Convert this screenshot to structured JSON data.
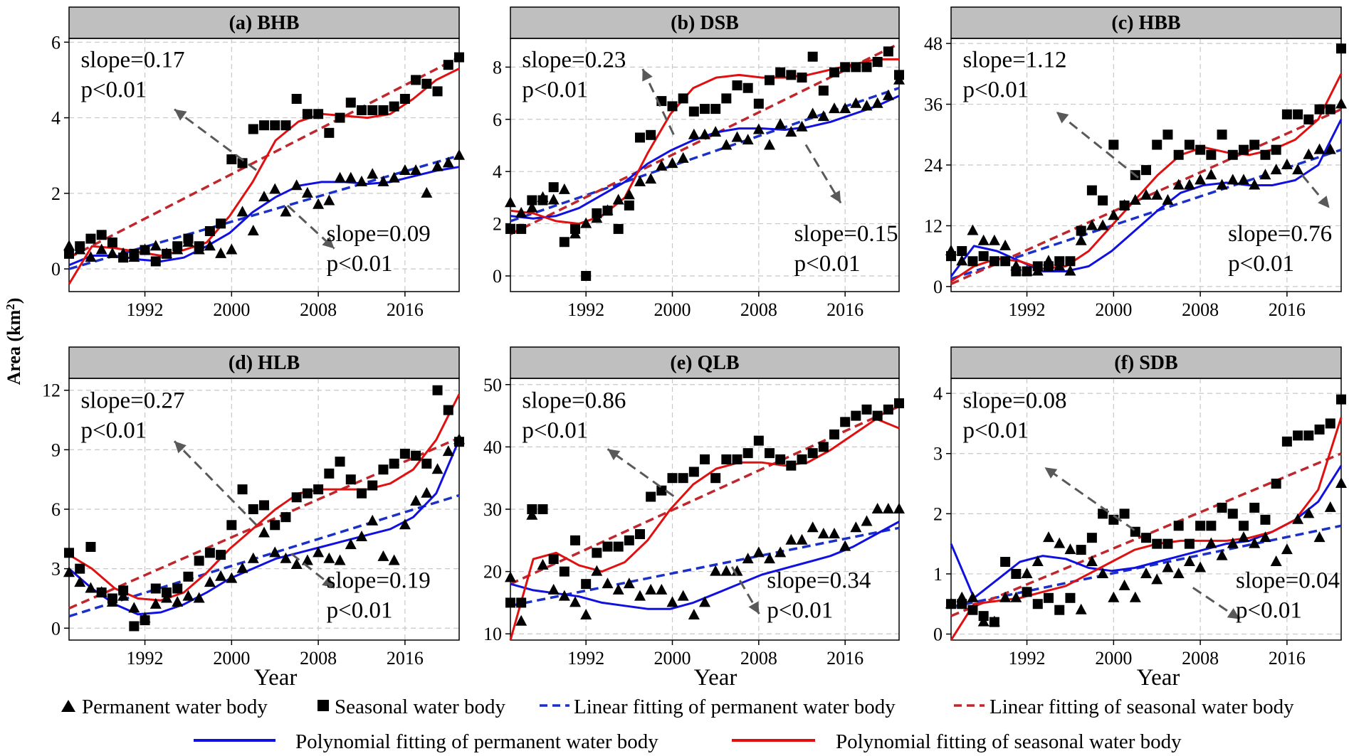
{
  "figure": {
    "y_axis_label": "Area (km",
    "y_axis_label_sup": "2",
    "y_axis_label_close": ")",
    "x_axis_label": "Year"
  },
  "legend": {
    "permanent_points": "Permanent water body",
    "seasonal_points": "Seasonal water body",
    "linear_permanent": "Linear fitting of permanent water body",
    "linear_seasonal": "Linear fitting of seasonal water body",
    "poly_permanent": "Polynomial fitting of permanent water body",
    "poly_seasonal": "Polynomial fitting of seasonal water body"
  },
  "colors": {
    "permanent_poly": "#1010e0",
    "permanent_linear": "#1a30c8",
    "seasonal_poly": "#e01010",
    "seasonal_linear": "#c0272d",
    "header_fill": "#bfbfbf",
    "grid": "#c8c8c8",
    "arrow": "#595959"
  },
  "chart_data": [
    {
      "type": "scatter",
      "label": "(a)",
      "name": "BHB",
      "xlim": [
        1985,
        2021
      ],
      "ylim": [
        -0.6,
        6.1
      ],
      "yticks": [
        0,
        2,
        4,
        6
      ],
      "xticks": [
        1992,
        2000,
        2008,
        2016
      ],
      "seasonal": {
        "slope_text": "slope=0.17",
        "p_text": "p<0.01",
        "values": [
          0.4,
          0.6,
          0.8,
          0.9,
          0.7,
          0.3,
          0.4,
          0.5,
          0.2,
          0.4,
          0.6,
          0.8,
          0.6,
          1.0,
          1.2,
          2.9,
          2.8,
          3.7,
          3.8,
          3.8,
          3.8,
          4.5,
          4.1,
          4.1,
          3.6,
          4.0,
          4.4,
          4.2,
          4.2,
          4.2,
          4.3,
          4.5,
          5.0,
          4.9,
          4.7,
          5.4,
          5.6
        ],
        "line": [
          0.3,
          5.6
        ],
        "poly": [
          -0.4,
          0.6,
          0.55,
          0.45,
          0.35,
          0.5,
          0.7,
          1.4,
          2.3,
          3.4,
          3.9,
          4.1,
          4.05,
          4.0,
          4.1,
          4.5,
          5.0,
          5.3
        ]
      },
      "permanent": {
        "slope_text": "slope=0.09",
        "p_text": "p<0.01",
        "values": [
          0.6,
          0.5,
          0.3,
          0.5,
          0.4,
          0.4,
          0.3,
          0.5,
          0.6,
          0.4,
          0.5,
          0.7,
          0.5,
          0.6,
          0.4,
          0.5,
          1.5,
          1.0,
          1.9,
          2.1,
          1.5,
          2.2,
          2.0,
          1.7,
          1.8,
          2.4,
          2.4,
          2.3,
          2.5,
          2.3,
          2.4,
          2.6,
          2.6,
          2.0,
          2.7,
          2.8,
          3.0
        ],
        "line": [
          0.0,
          3.0
        ],
        "poly": [
          0.1,
          0.35,
          0.35,
          0.25,
          0.2,
          0.3,
          0.6,
          0.95,
          1.5,
          1.9,
          2.2,
          2.3,
          2.3,
          2.25,
          2.3,
          2.45,
          2.6,
          2.7
        ]
      },
      "annotations": {
        "seasonal_text": [
          0.03,
          0.92
        ],
        "seasonal_arrow": [
          [
            0.48,
            0.48
          ],
          [
            0.27,
            0.72
          ]
        ],
        "permanent_text": [
          0.66,
          0.2
        ],
        "permanent_arrow": [
          [
            0.56,
            0.34
          ],
          [
            0.68,
            0.17
          ]
        ]
      }
    },
    {
      "type": "scatter",
      "label": "(b)",
      "name": "DSB",
      "xlim": [
        1985,
        2021
      ],
      "ylim": [
        -0.6,
        9.1
      ],
      "yticks": [
        0,
        2,
        4,
        6,
        8
      ],
      "xticks": [
        1992,
        2000,
        2008,
        2016
      ],
      "seasonal": {
        "slope_text": "slope=0.23",
        "p_text": "p<0.01",
        "values": [
          1.8,
          1.8,
          2.9,
          2.9,
          3.4,
          1.3,
          1.8,
          0.0,
          2.4,
          2.5,
          1.8,
          2.7,
          5.3,
          5.4,
          6.7,
          6.5,
          6.8,
          6.3,
          6.4,
          6.4,
          6.8,
          7.3,
          7.2,
          6.6,
          7.5,
          7.8,
          7.7,
          7.6,
          8.4,
          7.1,
          7.8,
          8.0,
          8.0,
          8.0,
          8.2,
          8.6,
          7.7
        ],
        "line": [
          1.6,
          8.9
        ],
        "poly": [
          2.5,
          2.4,
          2.1,
          2.0,
          2.3,
          3.0,
          4.7,
          6.2,
          7.2,
          7.6,
          7.7,
          7.6,
          7.6,
          7.7,
          7.9,
          8.1,
          8.3,
          8.3
        ]
      },
      "permanent": {
        "slope_text": "slope=0.15",
        "p_text": "p<0.01",
        "values": [
          2.8,
          2.4,
          2.6,
          3.0,
          2.9,
          3.3,
          1.6,
          2.0,
          2.2,
          2.5,
          2.9,
          3.1,
          3.6,
          3.7,
          4.2,
          4.3,
          4.5,
          5.4,
          5.4,
          5.5,
          5.0,
          5.3,
          5.2,
          5.6,
          5.0,
          5.8,
          5.5,
          5.7,
          6.2,
          6.1,
          6.4,
          6.4,
          6.6,
          6.5,
          6.6,
          6.9,
          7.5
        ],
        "line": [
          2.1,
          7.2
        ],
        "poly": [
          2.3,
          2.2,
          2.3,
          2.6,
          3.1,
          3.6,
          4.3,
          4.8,
          5.2,
          5.5,
          5.65,
          5.65,
          5.6,
          5.7,
          5.9,
          6.2,
          6.5,
          6.9
        ]
      },
      "annotations": {
        "seasonal_text": [
          0.03,
          0.92
        ],
        "seasonal_arrow": [
          [
            0.42,
            0.62
          ],
          [
            0.34,
            0.88
          ]
        ],
        "permanent_text": [
          0.73,
          0.2
        ],
        "permanent_arrow": [
          [
            0.76,
            0.58
          ],
          [
            0.85,
            0.35
          ]
        ]
      }
    },
    {
      "type": "scatter",
      "label": "(c)",
      "name": "HBB",
      "xlim": [
        1985,
        2021
      ],
      "ylim": [
        -1,
        49
      ],
      "yticks": [
        0,
        12,
        24,
        36,
        48
      ],
      "xticks": [
        1992,
        2000,
        2008,
        2016
      ],
      "seasonal": {
        "slope_text": "slope=1.12",
        "p_text": "p<0.01",
        "values": [
          6,
          7,
          5,
          6,
          5,
          5,
          3,
          3,
          4,
          4,
          5,
          5,
          11,
          19,
          17,
          28,
          16,
          22,
          23,
          28,
          30,
          26,
          28,
          27,
          26,
          30,
          26,
          27,
          28,
          26,
          27,
          34,
          34,
          33,
          35,
          35,
          47
        ],
        "line": [
          0.5,
          35
        ],
        "poly": [
          1,
          4,
          5.5,
          5,
          3.5,
          4,
          7,
          12,
          17,
          22,
          26,
          27.5,
          26.5,
          26,
          27,
          29,
          33,
          42
        ]
      },
      "permanent": {
        "slope_text": "slope=0.76",
        "p_text": "p<0.01",
        "values": [
          7,
          5,
          11,
          9,
          9,
          8,
          4,
          3,
          3,
          5,
          4,
          3,
          9,
          12,
          12,
          14,
          16,
          17,
          18,
          18,
          17,
          20,
          20,
          21,
          22,
          20,
          21,
          21,
          20,
          22,
          23,
          24,
          23,
          26,
          27,
          27,
          36
        ],
        "line": [
          1.5,
          27
        ],
        "poly": [
          2,
          8,
          7,
          5,
          3,
          3,
          4,
          7,
          11,
          15,
          18.5,
          20,
          20.5,
          20,
          20,
          21,
          24,
          33
        ]
      },
      "annotations": {
        "seasonal_text": [
          0.03,
          0.92
        ],
        "seasonal_arrow": [
          [
            0.48,
            0.45
          ],
          [
            0.27,
            0.71
          ]
        ],
        "permanent_text": [
          0.71,
          0.2
        ],
        "permanent_arrow": [
          [
            0.9,
            0.46
          ],
          [
            0.97,
            0.33
          ]
        ]
      }
    },
    {
      "type": "scatter",
      "label": "(d)",
      "name": "HLB",
      "xlim": [
        1985,
        2021
      ],
      "ylim": [
        -0.6,
        12.6
      ],
      "yticks": [
        0,
        3,
        6,
        9,
        12
      ],
      "xticks": [
        1992,
        2000,
        2008,
        2016
      ],
      "seasonal": {
        "slope_text": "slope=0.27",
        "p_text": "p<0.01",
        "values": [
          3.8,
          3.0,
          4.1,
          1.8,
          1.5,
          1.9,
          0.1,
          0.4,
          2.0,
          1.8,
          2.0,
          2.6,
          3.4,
          3.8,
          3.7,
          5.2,
          7.0,
          6.0,
          6.2,
          5.2,
          5.6,
          6.6,
          6.8,
          7.0,
          7.8,
          8.4,
          7.5,
          6.8,
          7.2,
          8.0,
          8.3,
          8.8,
          8.7,
          8.3,
          12.0,
          11.0,
          9.4
        ],
        "line": [
          1.0,
          9.6
        ],
        "poly": [
          3.7,
          3.0,
          2.0,
          1.5,
          1.4,
          1.8,
          2.8,
          4.0,
          5.0,
          6.0,
          6.8,
          7.0,
          7.0,
          7.0,
          7.3,
          8.0,
          9.5,
          11.8
        ]
      },
      "permanent": {
        "slope_text": "slope=0.19",
        "p_text": "p<0.01",
        "values": [
          2.8,
          2.3,
          2.0,
          1.8,
          1.3,
          1.6,
          1.0,
          0.5,
          1.2,
          1.5,
          1.3,
          1.6,
          1.5,
          2.3,
          2.6,
          2.5,
          3.0,
          3.5,
          4.8,
          3.8,
          3.5,
          3.2,
          3.4,
          3.8,
          3.5,
          3.4,
          4.2,
          4.6,
          5.4,
          3.6,
          3.4,
          5.2,
          6.4,
          6.8,
          8.0,
          8.9,
          9.5
        ],
        "line": [
          0.6,
          6.7
        ],
        "poly": [
          3.0,
          2.0,
          1.2,
          0.7,
          0.8,
          1.2,
          1.8,
          2.5,
          3.0,
          3.5,
          3.8,
          4.1,
          4.4,
          4.7,
          5.0,
          5.6,
          6.8,
          9.5
        ]
      },
      "annotations": {
        "seasonal_text": [
          0.03,
          0.92
        ],
        "seasonal_arrow": [
          [
            0.48,
            0.44
          ],
          [
            0.27,
            0.76
          ]
        ],
        "permanent_text": [
          0.66,
          0.2
        ],
        "permanent_arrow": [
          [
            0.57,
            0.33
          ],
          [
            0.68,
            0.2
          ]
        ]
      }
    },
    {
      "type": "scatter",
      "label": "(e)",
      "name": "QLB",
      "xlim": [
        1985,
        2021
      ],
      "ylim": [
        9,
        51
      ],
      "yticks": [
        10,
        20,
        30,
        40,
        50
      ],
      "xticks": [
        1992,
        2000,
        2008,
        2016
      ],
      "seasonal": {
        "slope_text": "slope=0.86",
        "p_text": "p<0.01",
        "values": [
          15,
          15,
          30,
          30,
          22,
          20,
          25,
          18,
          23,
          24,
          24,
          25,
          26,
          32,
          33,
          35,
          35,
          36,
          38,
          35,
          38,
          38,
          39,
          41,
          39,
          38,
          37,
          38,
          39,
          40,
          42,
          44,
          45,
          46,
          45,
          46,
          47
        ],
        "line": [
          18,
          46.5
        ],
        "poly": [
          9,
          22,
          23,
          21,
          20,
          21.5,
          25,
          30,
          34,
          36.5,
          37.5,
          37.5,
          37,
          37.5,
          39.5,
          42,
          44.5,
          43
        ]
      },
      "permanent": {
        "slope_text": "slope=0.34",
        "p_text": "p<0.01",
        "values": [
          19,
          12,
          29,
          21,
          17,
          16,
          15,
          13,
          20,
          18,
          17,
          18,
          16,
          17,
          17,
          15,
          16,
          13,
          15,
          20,
          20,
          20,
          22,
          23,
          22,
          23,
          25,
          25,
          27,
          26,
          26,
          24,
          27,
          28,
          30,
          30,
          30
        ],
        "line": [
          14.5,
          27
        ],
        "poly": [
          18,
          17,
          16.5,
          16,
          15,
          14.5,
          14,
          14,
          15,
          16.5,
          18,
          19.5,
          20.5,
          21.5,
          22.5,
          24,
          26,
          28
        ]
      },
      "annotations": {
        "seasonal_text": [
          0.03,
          0.92
        ],
        "seasonal_arrow": [
          [
            0.42,
            0.55
          ],
          [
            0.25,
            0.73
          ]
        ],
        "permanent_text": [
          0.66,
          0.2
        ],
        "permanent_arrow": [
          [
            0.57,
            0.28
          ],
          [
            0.64,
            0.1
          ]
        ]
      }
    },
    {
      "type": "scatter",
      "label": "(f)",
      "name": "SDB",
      "xlim": [
        1985,
        2021
      ],
      "ylim": [
        -0.1,
        4.25
      ],
      "yticks": [
        0,
        1,
        2,
        3,
        4
      ],
      "xticks": [
        1992,
        2000,
        2008,
        2016
      ],
      "seasonal": {
        "slope_text": "slope=0.08",
        "p_text": "p<0.01",
        "values": [
          0.5,
          0.5,
          0.4,
          0.3,
          0.2,
          1.2,
          1.0,
          0.7,
          0.5,
          0.6,
          0.4,
          0.6,
          1.4,
          1.6,
          2.0,
          1.9,
          2.0,
          1.7,
          1.6,
          1.5,
          1.5,
          1.8,
          1.5,
          1.8,
          1.8,
          2.1,
          2.0,
          1.8,
          2.1,
          1.9,
          2.5,
          3.2,
          3.3,
          3.3,
          3.4,
          3.5,
          3.9
        ],
        "line": [
          0.3,
          3.0
        ],
        "poly": [
          -0.1,
          0.5,
          0.55,
          0.6,
          0.7,
          0.8,
          1.0,
          1.2,
          1.4,
          1.5,
          1.55,
          1.55,
          1.55,
          1.6,
          1.7,
          1.9,
          2.4,
          3.6
        ]
      },
      "permanent": {
        "slope_text": "slope=0.04",
        "p_text": "p<0.01",
        "values": [
          0.5,
          0.6,
          0.6,
          0.2,
          0.2,
          0.6,
          0.6,
          1.0,
          1.2,
          1.6,
          1.5,
          1.4,
          0.4,
          1.2,
          1.0,
          0.6,
          0.8,
          0.6,
          1.0,
          0.9,
          1.1,
          1.0,
          1.2,
          1.1,
          1.5,
          1.3,
          1.5,
          1.6,
          1.5,
          1.6,
          1.2,
          1.4,
          1.9,
          2.0,
          1.6,
          2.1,
          2.5
        ],
        "line": [
          0.45,
          1.8
        ],
        "poly": [
          1.5,
          0.6,
          0.9,
          1.2,
          1.3,
          1.25,
          1.1,
          1.05,
          1.1,
          1.2,
          1.3,
          1.4,
          1.5,
          1.55,
          1.7,
          1.9,
          2.2,
          2.8
        ]
      },
      "annotations": {
        "seasonal_text": [
          0.03,
          0.92
        ],
        "seasonal_arrow": [
          [
            0.47,
            0.42
          ],
          [
            0.24,
            0.66
          ]
        ],
        "permanent_text": [
          0.73,
          0.2
        ],
        "permanent_arrow": [
          [
            0.62,
            0.2
          ],
          [
            0.74,
            0.08
          ]
        ]
      }
    }
  ]
}
